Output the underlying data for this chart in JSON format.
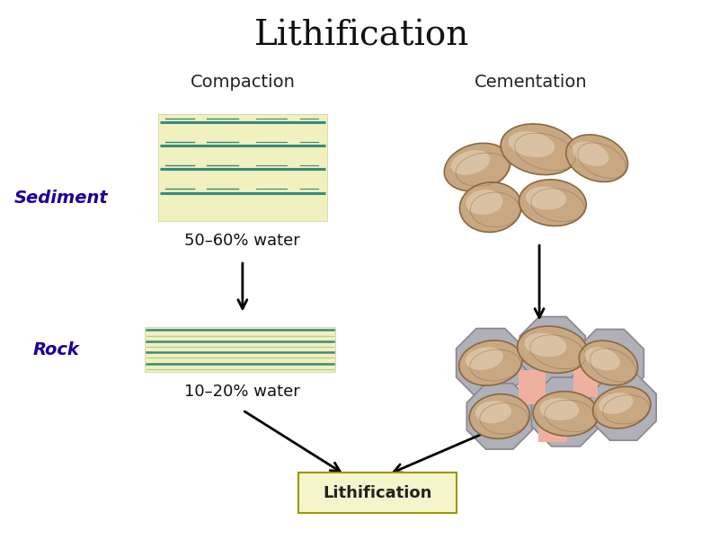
{
  "title": "Lithification",
  "title_fontsize": 28,
  "title_color": "#111111",
  "bg_color": "#ffffff",
  "compaction_label": "Compaction",
  "cementation_label": "Cementation",
  "sediment_label": "Sediment",
  "rock_label": "Rock",
  "water_top": "50–60% water",
  "water_bottom": "10–20% water",
  "litho_box_label": "Lithification",
  "side_label_color": "#1a0099",
  "header_fontsize": 14,
  "side_fontsize": 14,
  "water_fontsize": 13,
  "litho_fontsize": 13,
  "rect_fill": "#f0f0c0",
  "stripe_teal": "#3a8a7a",
  "stripe_light": "#b8cc88",
  "litho_box_fill": "#f5f5cc",
  "litho_box_edge": "#999900",
  "pebble_fill": "#c8a882",
  "pebble_edge": "#8b6840",
  "pebble_highlight": "#e8d8c0",
  "cement_fill": "#b0b0b8",
  "cement_edge": "#888890",
  "pink_fill": "#f0b0a0"
}
